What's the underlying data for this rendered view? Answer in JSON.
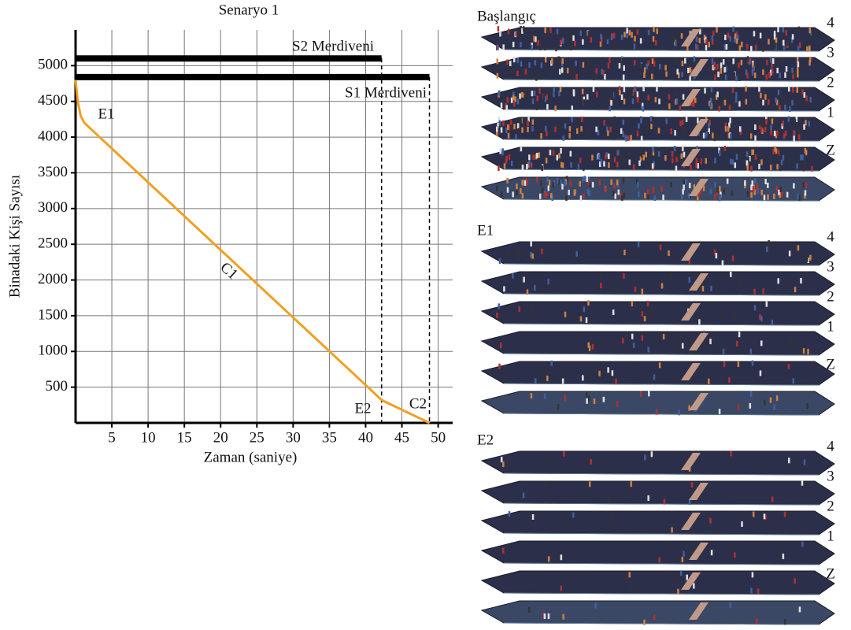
{
  "chart_data": {
    "type": "line",
    "title": "Senaryo 1",
    "x_label": "Zaman (saniye)",
    "y_label": "Binadaki Kişi Sayısı",
    "x": [
      0,
      0.3,
      0.7,
      1.2,
      2,
      10,
      20,
      30,
      40,
      42.2,
      45,
      48.8
    ],
    "series": [
      {
        "name": "C1",
        "color": "#f0a020",
        "values": [
          4800,
          4500,
          4300,
          4200,
          4124,
          3367,
          2421,
          1475,
          530,
          320,
          184,
          0
        ]
      }
    ],
    "stairs": [
      {
        "name": "S2 Merdiveni",
        "y": 5100,
        "x_end": 42.2
      },
      {
        "name": "S1 Merdiveni",
        "y": 4840,
        "x_end": 48.8
      }
    ],
    "annotations": [
      "E1",
      "C1",
      "E2",
      "C2"
    ],
    "xlim": [
      0,
      52
    ],
    "ylim": [
      0,
      5500
    ],
    "xticks": [
      5,
      10,
      15,
      20,
      25,
      30,
      35,
      40,
      45,
      50
    ],
    "yticks": [
      500,
      1000,
      1500,
      2000,
      2500,
      3000,
      3500,
      4000,
      4500,
      5000
    ],
    "grid": true
  },
  "panels": [
    {
      "title": "Başlangıç",
      "floors": [
        "4",
        "3",
        "2",
        "1",
        "Z"
      ]
    },
    {
      "title": "E1",
      "floors": [
        "4",
        "3",
        "2",
        "1",
        "Z"
      ]
    },
    {
      "title": "E2",
      "floors": [
        "4",
        "3",
        "2",
        "1",
        "Z"
      ]
    }
  ]
}
